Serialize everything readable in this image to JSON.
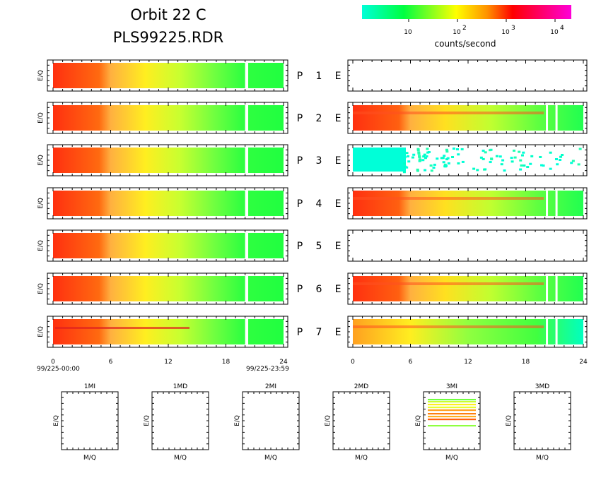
{
  "header": {
    "title_line1": "Orbit 22 C",
    "title_line2": "PLS99225.RDR"
  },
  "colorbar": {
    "label": "counts/second",
    "ticks": [
      {
        "base": "10",
        "exp": ""
      },
      {
        "base": "10",
        "exp": "2"
      },
      {
        "base": "10",
        "exp": "3"
      },
      {
        "base": "10",
        "exp": "4"
      }
    ],
    "colors": [
      "#00ffd8",
      "#00ff40",
      "#ffff00",
      "#ff9000",
      "#ff0000",
      "#ff00d8"
    ]
  },
  "chart_data": [
    {
      "type": "heatmap",
      "panel": "P",
      "ylabel": "E/Q",
      "x_ticks": [
        "0",
        "6",
        "12",
        "18",
        "24"
      ],
      "x_start_label": "99/225-00:00",
      "x_end_label": "99/225-23:59",
      "xlim": [
        0,
        24
      ],
      "gap_hours": [
        20.0,
        20.1
      ],
      "rows": [
        {
          "label": "P",
          "channel": "1"
        },
        {
          "label": "P",
          "channel": "2"
        },
        {
          "label": "P",
          "channel": "3"
        },
        {
          "label": "P",
          "channel": "4"
        },
        {
          "label": "P",
          "channel": "5"
        },
        {
          "label": "P",
          "channel": "6"
        },
        {
          "label": "P",
          "channel": "7"
        }
      ]
    },
    {
      "type": "heatmap",
      "panel": "E",
      "x_ticks": [
        "0",
        "6",
        "12",
        "18",
        "24"
      ],
      "xlim": [
        0,
        24
      ],
      "rows": [
        {
          "label": "E",
          "state": "empty"
        },
        {
          "label": "E",
          "state": "data"
        },
        {
          "label": "E",
          "state": "sparse"
        },
        {
          "label": "E",
          "state": "data"
        },
        {
          "label": "E",
          "state": "empty"
        },
        {
          "label": "E",
          "state": "data"
        },
        {
          "label": "E",
          "state": "data"
        }
      ]
    },
    {
      "type": "scatter",
      "panels": [
        {
          "title": "1MI",
          "xlabel": "M/Q",
          "ylabel": "E/Q",
          "has_data": false
        },
        {
          "title": "1MD",
          "xlabel": "M/Q",
          "ylabel": "E/Q",
          "has_data": false
        },
        {
          "title": "2MI",
          "xlabel": "M/Q",
          "ylabel": "E/Q",
          "has_data": false
        },
        {
          "title": "2MD",
          "xlabel": "M/Q",
          "ylabel": "E/Q",
          "has_data": false
        },
        {
          "title": "3MI",
          "xlabel": "M/Q",
          "ylabel": "E/Q",
          "has_data": true
        },
        {
          "title": "3MD",
          "xlabel": "M/Q",
          "ylabel": "E/Q",
          "has_data": false
        }
      ]
    }
  ]
}
